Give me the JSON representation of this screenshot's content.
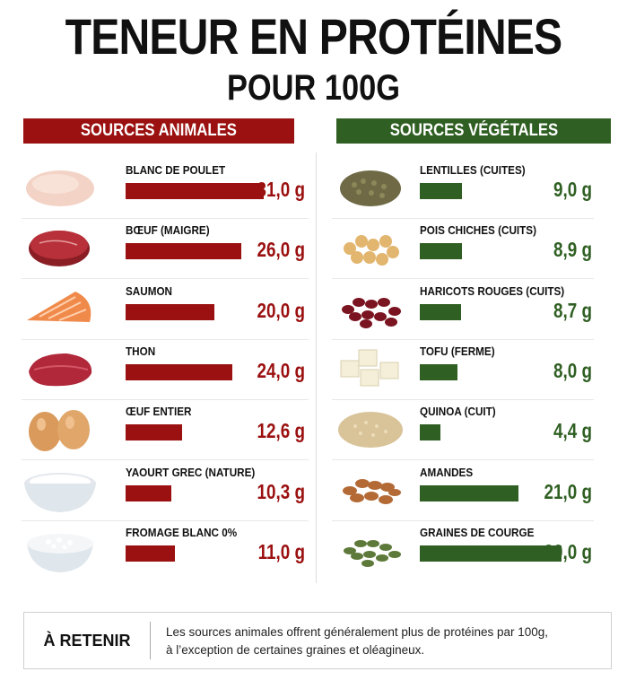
{
  "title": "TENEUR EN PROTÉINES",
  "subtitle": "POUR 100G",
  "columns": {
    "animal_header": "SOURCES ANIMALES",
    "veg_header": "SOURCES VÉGÉTALES"
  },
  "colors": {
    "animal": "#9b1010",
    "vegetal": "#2f5f22"
  },
  "chart_data": {
    "type": "bar",
    "title": "TENEUR EN PROTÉINES POUR 100G",
    "unit": "g",
    "series": [
      {
        "name": "SOURCES ANIMALES",
        "items": [
          {
            "label": "BLANC DE POULET",
            "value": 31.0,
            "value_text": "31,0 g",
            "icon": "chicken-breast"
          },
          {
            "label": "BŒUF (MAIGRE)",
            "value": 26.0,
            "value_text": "26,0 g",
            "icon": "beef-steak"
          },
          {
            "label": "SAUMON",
            "value": 20.0,
            "value_text": "20,0 g",
            "icon": "salmon-fillet"
          },
          {
            "label": "THON",
            "value": 24.0,
            "value_text": "24,0 g",
            "icon": "tuna-steak"
          },
          {
            "label": "ŒUF ENTIER",
            "value": 12.6,
            "value_text": "12,6 g",
            "icon": "eggs"
          },
          {
            "label": "YAOURT GREC (NATURE)",
            "value": 10.3,
            "value_text": "10,3 g",
            "icon": "greek-yogurt-bowl"
          },
          {
            "label": "FROMAGE BLANC 0%",
            "value": 11.0,
            "value_text": "11,0 g",
            "icon": "cottage-cheese-bowl"
          }
        ]
      },
      {
        "name": "SOURCES VÉGÉTALES",
        "items": [
          {
            "label": "LENTILLES (CUITES)",
            "value": 9.0,
            "value_text": "9,0 g",
            "icon": "lentils"
          },
          {
            "label": "POIS CHICHES (CUITS)",
            "value": 8.9,
            "value_text": "8,9 g",
            "icon": "chickpeas"
          },
          {
            "label": "HARICOTS ROUGES (CUITS)",
            "value": 8.7,
            "value_text": "8,7 g",
            "icon": "red-beans"
          },
          {
            "label": "TOFU (FERME)",
            "value": 8.0,
            "value_text": "8,0 g",
            "icon": "tofu-cubes"
          },
          {
            "label": "QUINOA (CUIT)",
            "value": 4.4,
            "value_text": "4,4 g",
            "icon": "quinoa"
          },
          {
            "label": "AMANDES",
            "value": 21.0,
            "value_text": "21,0 g",
            "icon": "almonds"
          },
          {
            "label": "GRAINES DE COURGE",
            "value": 30.0,
            "value_text": "30,0 g",
            "icon": "pumpkin-seeds"
          }
        ]
      }
    ],
    "xlim": [
      0,
      31
    ]
  },
  "retenir": {
    "label": "À RETENIR",
    "text_line1": "Les sources animales offrent généralement plus de protéines par 100g,",
    "text_line2": "à l’exception de certaines graines et oléagineux."
  }
}
